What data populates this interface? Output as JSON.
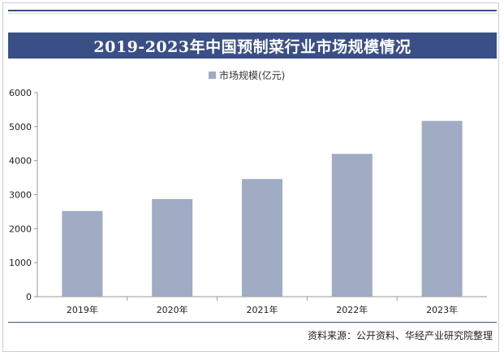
{
  "header": {
    "title": "2019-2023年中国预制菜行业市场规模情况"
  },
  "footer": {
    "source": "资料来源：公开资料、华经产业研究院整理"
  },
  "colors": {
    "title_bg": "#3a4f86",
    "bar": "#a0abc4",
    "axis": "#9a9a9a"
  },
  "chart_data": {
    "type": "bar",
    "title": "2019-2023年中国预制菜行业市场规模情况",
    "categories": [
      "2019年",
      "2020年",
      "2021年",
      "2022年",
      "2023年"
    ],
    "series": [
      {
        "name": "市场规模(亿元)",
        "values": [
          2520,
          2870,
          3460,
          4200,
          5170
        ]
      }
    ],
    "ylim": [
      0,
      6000
    ],
    "yticks": [
      0,
      1000,
      2000,
      3000,
      4000,
      5000,
      6000
    ],
    "xlabel": "",
    "ylabel": "",
    "grid": false,
    "legend": "top-center"
  }
}
